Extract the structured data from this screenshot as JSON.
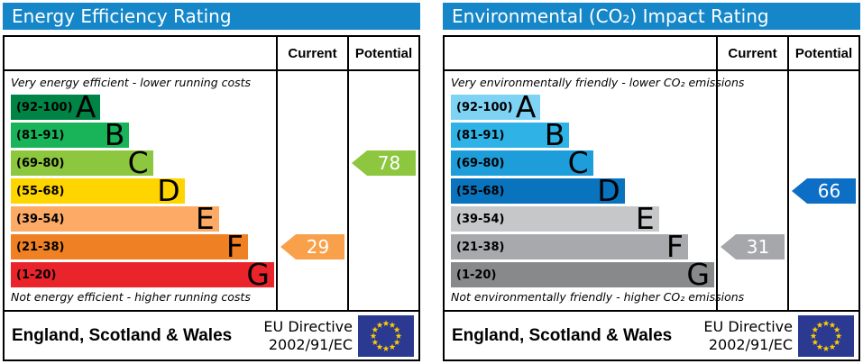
{
  "chart_data": [
    {
      "type": "bar",
      "orientation": "horizontal",
      "title": "Energy Efficiency Rating",
      "categories": [
        "A",
        "B",
        "C",
        "D",
        "E",
        "F",
        "G"
      ],
      "band_ranges": [
        "92-100",
        "81-91",
        "69-80",
        "55-68",
        "39-54",
        "21-38",
        "1-20"
      ],
      "bar_lengths_pct": [
        34,
        45,
        54,
        66,
        79,
        90,
        100
      ],
      "scale": [
        1,
        100
      ],
      "current": 29,
      "current_band": "F",
      "potential": 78,
      "potential_band": "C"
    },
    {
      "type": "bar",
      "orientation": "horizontal",
      "title": "Environmental (CO₂) Impact Rating",
      "categories": [
        "A",
        "B",
        "C",
        "D",
        "E",
        "F",
        "G"
      ],
      "band_ranges": [
        "92-100",
        "81-91",
        "69-80",
        "55-68",
        "39-54",
        "21-38",
        "1-20"
      ],
      "bar_lengths_pct": [
        34,
        45,
        54,
        66,
        79,
        90,
        100
      ],
      "scale": [
        1,
        100
      ],
      "current": 31,
      "current_band": "F",
      "potential": 66,
      "potential_band": "D"
    }
  ],
  "panels": [
    {
      "title": "Energy Efficiency Rating",
      "header_color": "#1586c8",
      "columns": {
        "current": "Current",
        "potential": "Potential"
      },
      "top_note": "Very energy efficient - lower running costs",
      "bottom_note": "Not energy efficient - higher running costs",
      "bands": [
        {
          "label": "(92-100)",
          "letter": "A",
          "color": "#008445",
          "width": 34
        },
        {
          "label": "(81-91)",
          "letter": "B",
          "color": "#19b459",
          "width": 45
        },
        {
          "label": "(69-80)",
          "letter": "C",
          "color": "#8dc63f",
          "width": 54
        },
        {
          "label": "(55-68)",
          "letter": "D",
          "color": "#ffd500",
          "width": 66
        },
        {
          "label": "(39-54)",
          "letter": "E",
          "color": "#fcaa65",
          "width": 79
        },
        {
          "label": "(21-38)",
          "letter": "F",
          "color": "#ef8023",
          "width": 90
        },
        {
          "label": "(1-20)",
          "letter": "G",
          "color": "#e9242a",
          "width": 100
        }
      ],
      "current": {
        "value": "29",
        "band_index": 5,
        "color": "#f9a04a"
      },
      "potential": {
        "value": "78",
        "band_index": 2,
        "color": "#8dc63f"
      },
      "footer": {
        "region": "England, Scotland & Wales",
        "eu_line1": "EU Directive",
        "eu_line2": "2002/91/EC",
        "flag": {
          "bg": "#2b3990",
          "star": "#ffcc00"
        }
      }
    },
    {
      "title": "Environmental (CO₂) Impact Rating",
      "header_color": "#1586c8",
      "columns": {
        "current": "Current",
        "potential": "Potential"
      },
      "top_note": "Very environmentally friendly - lower CO₂ emissions",
      "bottom_note": "Not environmentally friendly - higher CO₂ emissions",
      "bands": [
        {
          "label": "(92-100)",
          "letter": "A",
          "color": "#7ed3f4",
          "width": 34
        },
        {
          "label": "(81-91)",
          "letter": "B",
          "color": "#2fb2e5",
          "width": 45
        },
        {
          "label": "(69-80)",
          "letter": "C",
          "color": "#1d9dd9",
          "width": 54
        },
        {
          "label": "(55-68)",
          "letter": "D",
          "color": "#0974bd",
          "width": 66
        },
        {
          "label": "(39-54)",
          "letter": "E",
          "color": "#c5c7c9",
          "width": 79
        },
        {
          "label": "(21-38)",
          "letter": "F",
          "color": "#a7a9ac",
          "width": 90
        },
        {
          "label": "(1-20)",
          "letter": "G",
          "color": "#87898b",
          "width": 100
        }
      ],
      "current": {
        "value": "31",
        "band_index": 5,
        "color": "#a5a7aa"
      },
      "potential": {
        "value": "66",
        "band_index": 3,
        "color": "#0c6ec4"
      },
      "footer": {
        "region": "England, Scotland & Wales",
        "eu_line1": "EU Directive",
        "eu_line2": "2002/91/EC",
        "flag": {
          "bg": "#2b3990",
          "star": "#ffcc00"
        }
      }
    }
  ]
}
